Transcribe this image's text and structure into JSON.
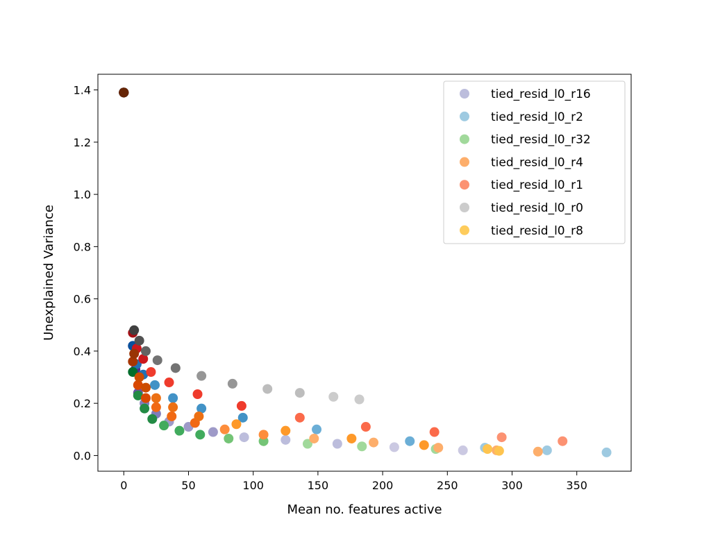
{
  "chart_data": {
    "type": "scatter",
    "title": "",
    "xlabel": "Mean no. features active",
    "ylabel": "Unexplained Variance",
    "xlim": [
      -20,
      392
    ],
    "ylim": [
      -0.06,
      1.46
    ],
    "xticks": [
      0,
      50,
      100,
      150,
      200,
      250,
      300,
      350
    ],
    "yticks": [
      0.0,
      0.2,
      0.4,
      0.6,
      0.8,
      1.0,
      1.2,
      1.4
    ],
    "xtick_labels": [
      "0",
      "50",
      "100",
      "150",
      "200",
      "250",
      "300",
      "350"
    ],
    "ytick_labels": [
      "0.0",
      "0.2",
      "0.4",
      "0.6",
      "0.8",
      "1.0",
      "1.2",
      "1.4"
    ],
    "grid": false,
    "legend_position": "top-right",
    "series": [
      {
        "name": "tied_resid_l0_r16",
        "legend_color": "#bcbddc",
        "points": [
          {
            "x": 0,
            "y": 1.39,
            "color": "#3f007d"
          },
          {
            "x": 7,
            "y": 0.42,
            "color": "#3f007d"
          },
          {
            "x": 9,
            "y": 0.33,
            "color": "#54278f"
          },
          {
            "x": 11,
            "y": 0.24,
            "color": "#6a51a3"
          },
          {
            "x": 16,
            "y": 0.2,
            "color": "#807dba"
          },
          {
            "x": 25,
            "y": 0.16,
            "color": "#807dba"
          },
          {
            "x": 35,
            "y": 0.13,
            "color": "#9e9ac8"
          },
          {
            "x": 50,
            "y": 0.11,
            "color": "#9e9ac8"
          },
          {
            "x": 69,
            "y": 0.09,
            "color": "#9e9ac8"
          },
          {
            "x": 93,
            "y": 0.07,
            "color": "#bcbddc"
          },
          {
            "x": 125,
            "y": 0.06,
            "color": "#bcbddc"
          },
          {
            "x": 165,
            "y": 0.045,
            "color": "#bcbddc"
          },
          {
            "x": 209,
            "y": 0.032,
            "color": "#cbc9e2"
          },
          {
            "x": 262,
            "y": 0.02,
            "color": "#cbc9e2"
          }
        ]
      },
      {
        "name": "tied_resid_l0_r2",
        "legend_color": "#9ecae1",
        "points": [
          {
            "x": 0,
            "y": 1.39,
            "color": "#08306b"
          },
          {
            "x": 7,
            "y": 0.42,
            "color": "#08519c"
          },
          {
            "x": 10,
            "y": 0.35,
            "color": "#2171b5"
          },
          {
            "x": 15,
            "y": 0.31,
            "color": "#2171b5"
          },
          {
            "x": 24,
            "y": 0.27,
            "color": "#4292c6"
          },
          {
            "x": 38,
            "y": 0.22,
            "color": "#4292c6"
          },
          {
            "x": 60,
            "y": 0.18,
            "color": "#4292c6"
          },
          {
            "x": 92,
            "y": 0.145,
            "color": "#4292c6"
          },
          {
            "x": 149,
            "y": 0.1,
            "color": "#6baed6"
          },
          {
            "x": 221,
            "y": 0.055,
            "color": "#6baed6"
          },
          {
            "x": 279,
            "y": 0.03,
            "color": "#9ecae1"
          },
          {
            "x": 327,
            "y": 0.02,
            "color": "#9ecae1"
          },
          {
            "x": 373,
            "y": 0.012,
            "color": "#9ecae1"
          }
        ]
      },
      {
        "name": "tied_resid_l0_r32",
        "legend_color": "#a1d99b",
        "points": [
          {
            "x": 0,
            "y": 1.39,
            "color": "#00441b"
          },
          {
            "x": 7,
            "y": 0.32,
            "color": "#006d2c"
          },
          {
            "x": 11,
            "y": 0.23,
            "color": "#238b45"
          },
          {
            "x": 16,
            "y": 0.18,
            "color": "#238b45"
          },
          {
            "x": 22,
            "y": 0.14,
            "color": "#238b45"
          },
          {
            "x": 31,
            "y": 0.115,
            "color": "#41ab5d"
          },
          {
            "x": 43,
            "y": 0.095,
            "color": "#41ab5d"
          },
          {
            "x": 59,
            "y": 0.08,
            "color": "#41ab5d"
          },
          {
            "x": 81,
            "y": 0.065,
            "color": "#74c476"
          },
          {
            "x": 108,
            "y": 0.055,
            "color": "#74c476"
          },
          {
            "x": 142,
            "y": 0.045,
            "color": "#a1d99b"
          },
          {
            "x": 184,
            "y": 0.035,
            "color": "#a1d99b"
          },
          {
            "x": 241,
            "y": 0.025,
            "color": "#a1d99b"
          }
        ]
      },
      {
        "name": "tied_resid_l0_r4",
        "legend_color": "#fdae6b",
        "points": [
          {
            "x": 0,
            "y": 1.39,
            "color": "#7f2704"
          },
          {
            "x": 7,
            "y": 0.36,
            "color": "#a63603"
          },
          {
            "x": 11,
            "y": 0.27,
            "color": "#d94801"
          },
          {
            "x": 17,
            "y": 0.22,
            "color": "#d94801"
          },
          {
            "x": 25,
            "y": 0.185,
            "color": "#f16913"
          },
          {
            "x": 37,
            "y": 0.15,
            "color": "#f16913"
          },
          {
            "x": 55,
            "y": 0.125,
            "color": "#f16913"
          },
          {
            "x": 78,
            "y": 0.1,
            "color": "#fd8d3c"
          },
          {
            "x": 108,
            "y": 0.08,
            "color": "#fd8d3c"
          },
          {
            "x": 147,
            "y": 0.065,
            "color": "#fdae6b"
          },
          {
            "x": 193,
            "y": 0.05,
            "color": "#fdae6b"
          },
          {
            "x": 243,
            "y": 0.03,
            "color": "#fdae6b"
          },
          {
            "x": 288,
            "y": 0.02,
            "color": "#fdae6b"
          },
          {
            "x": 320,
            "y": 0.015,
            "color": "#fdae6b"
          }
        ]
      },
      {
        "name": "tied_resid_l0_r1",
        "legend_color": "#fc9272",
        "points": [
          {
            "x": 0,
            "y": 1.39,
            "color": "#67000d"
          },
          {
            "x": 7,
            "y": 0.47,
            "color": "#a50f15"
          },
          {
            "x": 10,
            "y": 0.41,
            "color": "#cb181d"
          },
          {
            "x": 15,
            "y": 0.37,
            "color": "#cb181d"
          },
          {
            "x": 21,
            "y": 0.32,
            "color": "#ef3b2c"
          },
          {
            "x": 35,
            "y": 0.28,
            "color": "#ef3b2c"
          },
          {
            "x": 57,
            "y": 0.235,
            "color": "#ef3b2c"
          },
          {
            "x": 91,
            "y": 0.19,
            "color": "#ef3b2c"
          },
          {
            "x": 136,
            "y": 0.145,
            "color": "#fb6a4a"
          },
          {
            "x": 187,
            "y": 0.11,
            "color": "#fb6a4a"
          },
          {
            "x": 240,
            "y": 0.09,
            "color": "#fb6a4a"
          },
          {
            "x": 292,
            "y": 0.07,
            "color": "#fc9272"
          },
          {
            "x": 339,
            "y": 0.055,
            "color": "#fc9272"
          }
        ]
      },
      {
        "name": "tied_resid_l0_r0",
        "legend_color": "#cccccc",
        "points": [
          {
            "x": 0,
            "y": 1.39,
            "color": "#252525"
          },
          {
            "x": 8,
            "y": 0.48,
            "color": "#404040"
          },
          {
            "x": 12,
            "y": 0.44,
            "color": "#525252"
          },
          {
            "x": 17,
            "y": 0.4,
            "color": "#636363"
          },
          {
            "x": 26,
            "y": 0.365,
            "color": "#737373"
          },
          {
            "x": 40,
            "y": 0.335,
            "color": "#737373"
          },
          {
            "x": 60,
            "y": 0.305,
            "color": "#969696"
          },
          {
            "x": 84,
            "y": 0.275,
            "color": "#969696"
          },
          {
            "x": 111,
            "y": 0.255,
            "color": "#bdbdbd"
          },
          {
            "x": 136,
            "y": 0.24,
            "color": "#bdbdbd"
          },
          {
            "x": 162,
            "y": 0.225,
            "color": "#cccccc"
          },
          {
            "x": 182,
            "y": 0.215,
            "color": "#cccccc"
          }
        ]
      },
      {
        "name": "tied_resid_l0_r8",
        "legend_color": "#fecc5c",
        "points": [
          {
            "x": 0,
            "y": 1.39,
            "color": "#662506"
          },
          {
            "x": 8,
            "y": 0.39,
            "color": "#993404"
          },
          {
            "x": 12,
            "y": 0.3,
            "color": "#cc4c02"
          },
          {
            "x": 17,
            "y": 0.26,
            "color": "#cc4c02"
          },
          {
            "x": 25,
            "y": 0.22,
            "color": "#ec7014"
          },
          {
            "x": 38,
            "y": 0.185,
            "color": "#ec7014"
          },
          {
            "x": 58,
            "y": 0.15,
            "color": "#ec7014"
          },
          {
            "x": 87,
            "y": 0.12,
            "color": "#fe9929"
          },
          {
            "x": 125,
            "y": 0.095,
            "color": "#fe9929"
          },
          {
            "x": 176,
            "y": 0.065,
            "color": "#fe9929"
          },
          {
            "x": 232,
            "y": 0.04,
            "color": "#fe9929"
          },
          {
            "x": 281,
            "y": 0.025,
            "color": "#fec44f"
          },
          {
            "x": 290,
            "y": 0.018,
            "color": "#fec44f"
          }
        ]
      }
    ]
  }
}
